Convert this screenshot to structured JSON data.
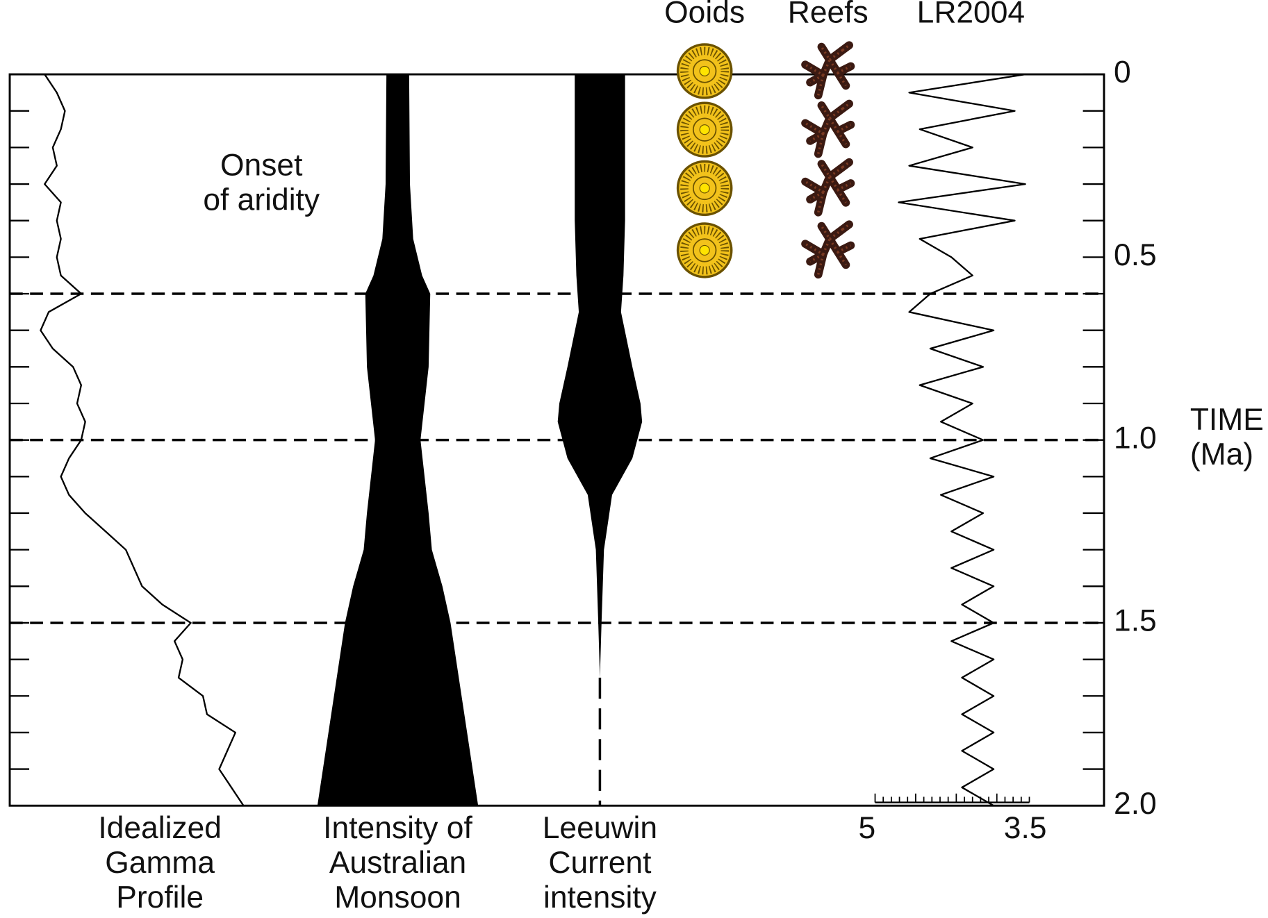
{
  "chart_data": {
    "type": "stratigraphic",
    "y_label": [
      "TIME",
      "(Ma)"
    ],
    "ylim": [
      0,
      2
    ],
    "yticks": [
      0,
      0.5,
      {
        "value": 1,
        "label": "1.0"
      },
      1.5,
      {
        "value": 2,
        "label": "2.0"
      }
    ],
    "yminor_ticks": [
      0.1,
      0.2,
      0.3,
      0.4,
      0.6,
      0.7,
      0.8,
      0.9,
      1.1,
      1.2,
      1.3,
      1.4,
      1.6,
      1.7,
      1.8,
      1.9
    ],
    "reference_lines": [
      0.6,
      1,
      1.5
    ],
    "annotation": [
      "Onset",
      "of aridity"
    ],
    "color": "#000000",
    "panels": [
      {
        "type": "line",
        "label": [
          "Idealized",
          "Gamma",
          "Profile"
        ],
        "t": [
          0,
          0.05,
          0.1,
          0.15,
          0.2,
          0.25,
          0.3,
          0.35,
          0.4,
          0.45,
          0.5,
          0.55,
          0.6,
          0.65,
          0.7,
          0.75,
          0.8,
          0.85,
          0.9,
          0.95,
          1,
          1.05,
          1.1,
          1.15,
          1.2,
          1.25,
          1.3,
          1.35,
          1.4,
          1.45,
          1.5,
          1.55,
          1.6,
          1.65,
          1.7,
          1.75,
          1.8,
          1.85,
          1.9,
          1.95,
          2
        ],
        "values": [
          43,
          58,
          68,
          63,
          53,
          58,
          43,
          63,
          58,
          63,
          58,
          63,
          88,
          48,
          38,
          53,
          78,
          88,
          83,
          93,
          88,
          73,
          63,
          73,
          93,
          118,
          143,
          153,
          163,
          188,
          223,
          203,
          213,
          208,
          238,
          243,
          278,
          268,
          258,
          273,
          288
        ]
      },
      {
        "type": "spindle",
        "label": [
          "Intensity of",
          "Australian",
          "Monsoon"
        ],
        "t": [
          0,
          0.3,
          0.45,
          0.55,
          0.6,
          0.8,
          1,
          1.2,
          1.3,
          1.4,
          1.5,
          2
        ],
        "values": [
          28,
          30,
          38,
          60,
          80,
          76,
          56,
          76,
          84,
          110,
          130,
          198
        ]
      },
      {
        "type": "spindle",
        "label": [
          "Leeuwin",
          "Current",
          "intensity"
        ],
        "t": [
          0,
          0.4,
          0.55,
          0.65,
          0.8,
          0.9,
          0.95,
          1.05,
          1.15,
          1.3,
          1.5,
          1.65
        ],
        "values": [
          62,
          62,
          58,
          52,
          80,
          100,
          104,
          80,
          30,
          10,
          4,
          0
        ]
      },
      {
        "type": "icons",
        "icon": "ooid",
        "title": "Ooids",
        "color": "#f2c21b",
        "t": [
          0,
          0.16,
          0.32,
          0.49
        ]
      },
      {
        "type": "icons",
        "icon": "reef",
        "title": "Reefs",
        "color": "#3b1a12",
        "t": [
          0,
          0.16,
          0.32,
          0.49
        ]
      },
      {
        "type": "line",
        "title": "LR2004",
        "xlim": [
          5,
          3.5
        ],
        "xticks": [
          5,
          3.5
        ],
        "t": [
          0,
          0.05,
          0.1,
          0.15,
          0.2,
          0.25,
          0.3,
          0.35,
          0.4,
          0.45,
          0.5,
          0.55,
          0.6,
          0.65,
          0.7,
          0.75,
          0.8,
          0.85,
          0.9,
          0.95,
          1,
          1.05,
          1.1,
          1.15,
          1.2,
          1.25,
          1.3,
          1.35,
          1.4,
          1.45,
          1.5,
          1.55,
          1.6,
          1.65,
          1.7,
          1.75,
          1.8,
          1.85,
          1.9,
          1.95,
          2
        ],
        "values": [
          3.5,
          4.6,
          3.6,
          4.5,
          4.0,
          4.6,
          3.5,
          4.7,
          3.6,
          4.5,
          4.2,
          4.0,
          4.4,
          4.6,
          3.8,
          4.4,
          3.9,
          4.5,
          4.0,
          4.3,
          3.9,
          4.4,
          3.8,
          4.3,
          3.9,
          4.2,
          3.8,
          4.2,
          3.8,
          4.1,
          3.8,
          4.2,
          3.8,
          4.1,
          3.8,
          4.1,
          3.8,
          4.1,
          3.8,
          4.1,
          3.8
        ]
      }
    ]
  }
}
